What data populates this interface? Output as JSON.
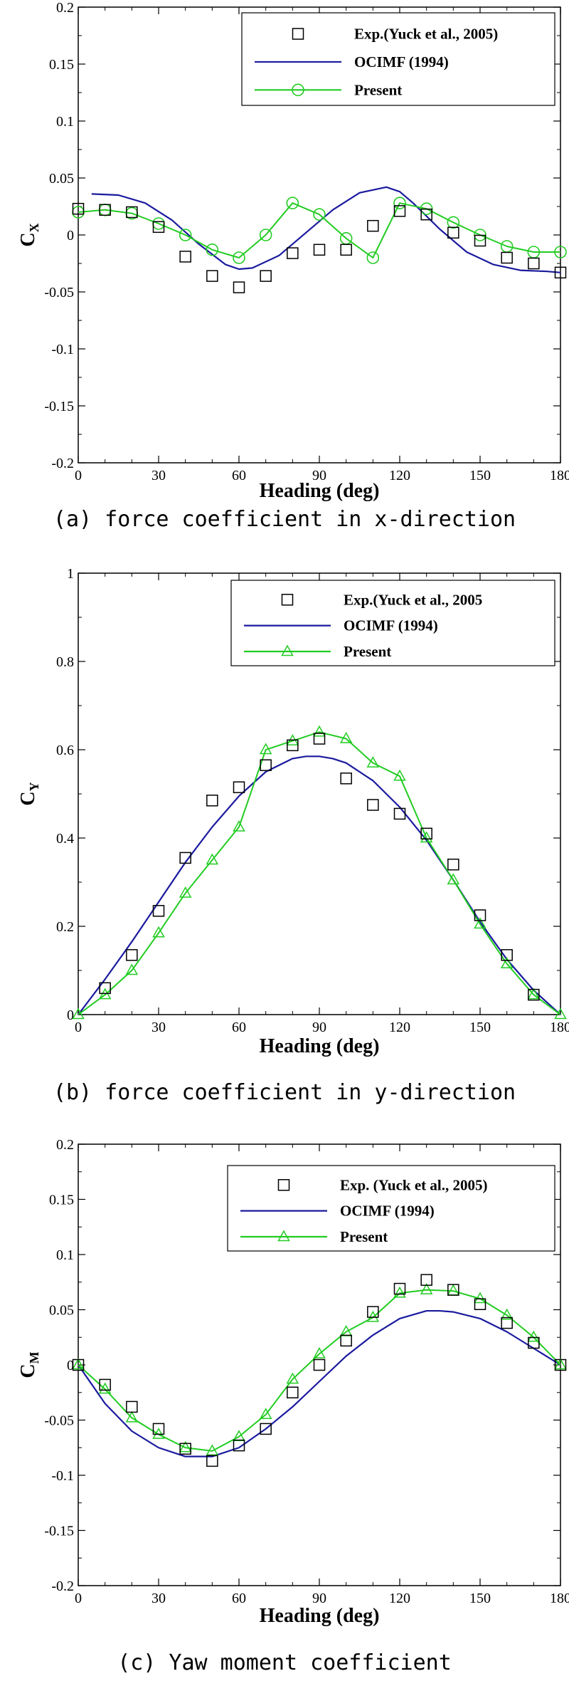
{
  "colors": {
    "exp": "#000000",
    "ocimf": "#1a1a9e",
    "present": "#22cc22"
  },
  "chart_data": [
    {
      "type": "line",
      "ylabel_main": "C",
      "ylabel_sub": "X",
      "xlabel": "Heading (deg)",
      "caption": "(a) force coefficient in x-direction",
      "xlim": [
        0,
        180
      ],
      "ylim": [
        -0.2,
        0.2
      ],
      "xticks": [
        0,
        30,
        60,
        90,
        120,
        150,
        180
      ],
      "xtick_labels": [
        "0",
        "30",
        "60",
        "90",
        "120",
        "150",
        "180"
      ],
      "yticks": [
        -0.2,
        -0.15,
        -0.1,
        -0.05,
        0,
        0.05,
        0.1,
        0.15,
        0.2
      ],
      "ytick_labels": [
        "-0.2",
        "-0.15",
        "-0.1",
        "-0.05",
        "0",
        "0.05",
        "0.1",
        "0.15",
        "0.2"
      ],
      "marker": "circle",
      "legend_position": "top-right",
      "series": [
        {
          "name": "Exp.(Yuck et al., 2005)",
          "style": "markers",
          "marker": "square",
          "x": [
            0,
            10,
            20,
            30,
            40,
            50,
            60,
            70,
            80,
            90,
            100,
            110,
            120,
            130,
            140,
            150,
            160,
            170,
            180
          ],
          "y": [
            0.023,
            0.022,
            0.02,
            0.007,
            -0.019,
            -0.036,
            -0.046,
            -0.036,
            -0.016,
            -0.013,
            -0.013,
            0.008,
            0.021,
            0.018,
            0.002,
            -0.005,
            -0.02,
            -0.025,
            -0.033
          ]
        },
        {
          "name": "OCIMF (1994)",
          "style": "line",
          "x": [
            5,
            15,
            25,
            35,
            45,
            55,
            60,
            65,
            75,
            85,
            95,
            105,
            115,
            120,
            125,
            135,
            145,
            155,
            165,
            175,
            180
          ],
          "y": [
            0.036,
            0.035,
            0.028,
            0.013,
            -0.008,
            -0.026,
            -0.03,
            -0.029,
            -0.018,
            0.002,
            0.022,
            0.037,
            0.042,
            0.038,
            0.028,
            0.005,
            -0.015,
            -0.026,
            -0.031,
            -0.032,
            -0.033
          ]
        },
        {
          "name": "Present",
          "style": "line-markers",
          "x": [
            0,
            10,
            20,
            30,
            40,
            50,
            60,
            70,
            80,
            90,
            100,
            110,
            120,
            130,
            140,
            150,
            160,
            170,
            180
          ],
          "y": [
            0.02,
            0.022,
            0.019,
            0.01,
            0.0,
            -0.013,
            -0.02,
            0.0,
            0.028,
            0.018,
            -0.003,
            -0.02,
            0.028,
            0.023,
            0.011,
            0.0,
            -0.01,
            -0.015,
            -0.015
          ]
        }
      ]
    },
    {
      "type": "line",
      "ylabel_main": "C",
      "ylabel_sub": "Y",
      "xlabel": "Heading (deg)",
      "caption": "(b) force coefficient in y-direction",
      "xlim": [
        0,
        180
      ],
      "ylim": [
        0,
        1
      ],
      "xticks": [
        0,
        30,
        60,
        90,
        120,
        150,
        180
      ],
      "xtick_labels": [
        "0",
        "30",
        "60",
        "90",
        "120",
        "150",
        "180"
      ],
      "yticks": [
        0,
        0.2,
        0.4,
        0.6,
        0.8,
        1
      ],
      "ytick_labels": [
        "0",
        "0.2",
        "0.4",
        "0.6",
        "0.8",
        "1"
      ],
      "marker": "triangle",
      "legend_position": "top-right",
      "series": [
        {
          "name": "Exp.(Yuck et al., 2005",
          "style": "markers",
          "marker": "square",
          "x": [
            10,
            20,
            30,
            40,
            50,
            60,
            70,
            80,
            90,
            100,
            110,
            120,
            130,
            140,
            150,
            160,
            170
          ],
          "y": [
            0.06,
            0.135,
            0.235,
            0.355,
            0.485,
            0.515,
            0.565,
            0.61,
            0.625,
            0.535,
            0.475,
            0.455,
            0.41,
            0.34,
            0.225,
            0.135,
            0.045
          ]
        },
        {
          "name": "OCIMF (1994)",
          "style": "line",
          "x": [
            0,
            10,
            20,
            30,
            40,
            50,
            60,
            70,
            80,
            85,
            90,
            95,
            100,
            110,
            120,
            130,
            140,
            150,
            160,
            170,
            180
          ],
          "y": [
            0.0,
            0.08,
            0.165,
            0.255,
            0.345,
            0.425,
            0.495,
            0.55,
            0.58,
            0.585,
            0.585,
            0.58,
            0.57,
            0.53,
            0.47,
            0.395,
            0.305,
            0.21,
            0.125,
            0.055,
            0.0
          ]
        },
        {
          "name": "Present",
          "style": "line-markers",
          "x": [
            0,
            10,
            20,
            30,
            40,
            50,
            60,
            70,
            80,
            90,
            100,
            110,
            120,
            130,
            140,
            150,
            160,
            170,
            180
          ],
          "y": [
            0.0,
            0.045,
            0.1,
            0.185,
            0.275,
            0.35,
            0.425,
            0.6,
            0.62,
            0.64,
            0.625,
            0.57,
            0.54,
            0.4,
            0.305,
            0.205,
            0.115,
            0.045,
            0.0
          ]
        }
      ]
    },
    {
      "type": "line",
      "ylabel_main": "C",
      "ylabel_sub": "M",
      "xlabel": "Heading (deg)",
      "caption": "(c) Yaw moment coefficient",
      "xlim": [
        0,
        180
      ],
      "ylim": [
        -0.2,
        0.2
      ],
      "xticks": [
        0,
        30,
        60,
        90,
        120,
        150,
        180
      ],
      "xtick_labels": [
        "0",
        "30",
        "60",
        "90",
        "120",
        "150",
        "180"
      ],
      "yticks": [
        -0.2,
        -0.15,
        -0.1,
        -0.05,
        0,
        0.05,
        0.1,
        0.15,
        0.2
      ],
      "ytick_labels": [
        "-0.2",
        "-0.15",
        "-0.1",
        "-0.05",
        "0",
        "0.05",
        "0.1",
        "0.15",
        "0.2"
      ],
      "marker": "triangle",
      "legend_position": "top-right",
      "series": [
        {
          "name": "Exp. (Yuck et al., 2005)",
          "style": "markers",
          "marker": "square",
          "x": [
            0,
            10,
            20,
            30,
            40,
            50,
            60,
            70,
            80,
            90,
            100,
            110,
            120,
            130,
            140,
            150,
            160,
            170,
            180
          ],
          "y": [
            0.0,
            -0.018,
            -0.038,
            -0.058,
            -0.076,
            -0.087,
            -0.073,
            -0.058,
            -0.025,
            0.0,
            0.022,
            0.048,
            0.069,
            0.077,
            0.068,
            0.055,
            0.038,
            0.02,
            0.0
          ]
        },
        {
          "name": "OCIMF (1994)",
          "style": "line",
          "x": [
            0,
            10,
            20,
            30,
            40,
            50,
            60,
            70,
            80,
            90,
            100,
            110,
            120,
            130,
            135,
            140,
            150,
            160,
            170,
            180
          ],
          "y": [
            0.0,
            -0.035,
            -0.06,
            -0.075,
            -0.083,
            -0.083,
            -0.075,
            -0.058,
            -0.038,
            -0.015,
            0.008,
            0.027,
            0.042,
            0.049,
            0.049,
            0.048,
            0.042,
            0.03,
            0.015,
            0.0
          ]
        },
        {
          "name": "Present",
          "style": "line-markers",
          "x": [
            0,
            10,
            20,
            30,
            40,
            50,
            60,
            70,
            80,
            90,
            100,
            110,
            120,
            130,
            140,
            150,
            160,
            170,
            180
          ],
          "y": [
            0.0,
            -0.022,
            -0.048,
            -0.063,
            -0.075,
            -0.078,
            -0.065,
            -0.045,
            -0.013,
            0.01,
            0.03,
            0.043,
            0.065,
            0.068,
            0.067,
            0.06,
            0.045,
            0.025,
            0.0
          ]
        }
      ]
    }
  ]
}
